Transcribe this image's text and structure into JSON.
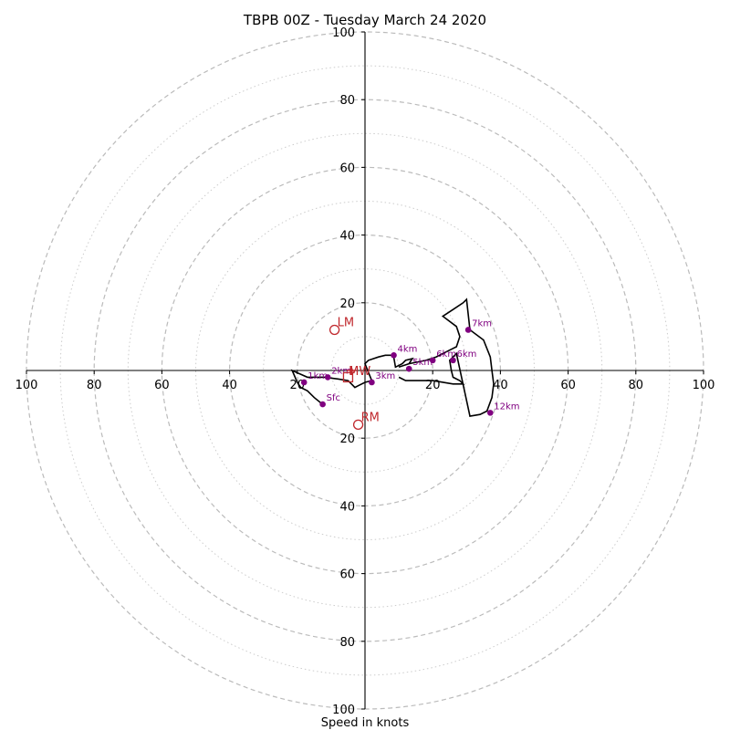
{
  "chart_data": {
    "type": "line",
    "title": "TBPB 00Z - Tuesday March 24 2020",
    "xlabel": "Speed in knots",
    "ylabel": "",
    "xlim": [
      -100,
      100
    ],
    "ylim": [
      -100,
      100
    ],
    "ring_major": [
      20,
      40,
      60,
      80,
      100
    ],
    "ring_minor": [
      10,
      30,
      50,
      70,
      90
    ],
    "grid": true,
    "tick_labels": {
      "left": [
        "100",
        "80",
        "60",
        "40",
        "20"
      ],
      "right": [
        "20",
        "40",
        "60",
        "80",
        "100"
      ],
      "top": [
        "20",
        "40",
        "60",
        "80",
        "100"
      ],
      "bottom": [
        "20",
        "40",
        "60",
        "80",
        "100"
      ]
    },
    "hodograph": {
      "x": [
        -12.5,
        -15,
        -17,
        -19,
        -20,
        -21.5,
        -17,
        -12,
        -8,
        -5,
        -4,
        -3,
        -2,
        0,
        2,
        1,
        0,
        1,
        4,
        6,
        8,
        8.5,
        9,
        11,
        12,
        14,
        13,
        10,
        13,
        18,
        21,
        25,
        27,
        28,
        27,
        23,
        26,
        29,
        30,
        31,
        35,
        37,
        37.5,
        38,
        37.5,
        36,
        34,
        31,
        27,
        25,
        25.5,
        26,
        28,
        29,
        26,
        20,
        15,
        12,
        10
      ],
      "y": [
        -10,
        -8,
        -6,
        -5,
        -3.5,
        0,
        -2,
        -2,
        -2.5,
        -3,
        -4,
        -5,
        -4.5,
        -3.5,
        -3,
        -0.5,
        2,
        3,
        4,
        4.5,
        4.5,
        4,
        1,
        2,
        3,
        3.5,
        2,
        1,
        2,
        3,
        4,
        6,
        7,
        10,
        13,
        16,
        18,
        20,
        21,
        12,
        9,
        4,
        0,
        -4,
        -8,
        -12,
        -13,
        -13.5,
        5,
        3,
        0,
        -2,
        -3,
        -4,
        -4,
        -3,
        -3,
        -3,
        -2
      ],
      "color": "#000000"
    },
    "height_points": [
      {
        "label": "Sfc",
        "x": -12.5,
        "y": -10
      },
      {
        "label": "1km",
        "x": -18,
        "y": -3.5
      },
      {
        "label": "2km",
        "x": -11,
        "y": -2
      },
      {
        "label": "3km",
        "x": 2,
        "y": -3.5
      },
      {
        "label": "4km",
        "x": 8.5,
        "y": 4.5
      },
      {
        "label": "5km",
        "x": 13,
        "y": 0.5
      },
      {
        "label": "6km",
        "x": 20,
        "y": 3
      },
      {
        "label": "6km",
        "x": 26,
        "y": 3
      },
      {
        "label": "7km",
        "x": 30.5,
        "y": 12
      },
      {
        "label": "12km",
        "x": 37,
        "y": -12.5
      }
    ],
    "height_color": "#800080",
    "motion_markers": [
      {
        "label": "LM",
        "x": -9,
        "y": 12,
        "shape": "circle"
      },
      {
        "label": "RM",
        "x": -2,
        "y": -16,
        "shape": "circle"
      },
      {
        "label": "MW",
        "x": -4,
        "y": 0,
        "shape": "cross"
      },
      {
        "label": "",
        "x": -5,
        "y": -2,
        "shape": "square"
      }
    ],
    "marker_color": "#c0282d"
  }
}
